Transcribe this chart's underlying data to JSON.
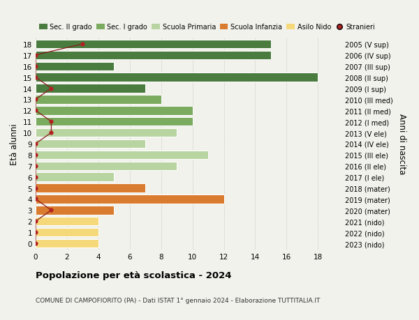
{
  "ages": [
    18,
    17,
    16,
    15,
    14,
    13,
    12,
    11,
    10,
    9,
    8,
    7,
    6,
    5,
    4,
    3,
    2,
    1,
    0
  ],
  "right_labels": [
    "2005 (V sup)",
    "2006 (IV sup)",
    "2007 (III sup)",
    "2008 (II sup)",
    "2009 (I sup)",
    "2010 (III med)",
    "2011 (II med)",
    "2012 (I med)",
    "2013 (V ele)",
    "2014 (IV ele)",
    "2015 (III ele)",
    "2016 (II ele)",
    "2017 (I ele)",
    "2018 (mater)",
    "2019 (mater)",
    "2020 (mater)",
    "2021 (nido)",
    "2022 (nido)",
    "2023 (nido)"
  ],
  "bar_values": [
    15,
    15,
    5,
    18,
    7,
    8,
    10,
    10,
    9,
    7,
    11,
    9,
    5,
    7,
    12,
    5,
    4,
    4,
    4
  ],
  "bar_colors": [
    "#4a7c3f",
    "#4a7c3f",
    "#4a7c3f",
    "#4a7c3f",
    "#4a7c3f",
    "#7aab5e",
    "#7aab5e",
    "#7aab5e",
    "#b8d4a0",
    "#b8d4a0",
    "#b8d4a0",
    "#b8d4a0",
    "#b8d4a0",
    "#d97c30",
    "#d97c30",
    "#d97c30",
    "#f5d87a",
    "#f5d87a",
    "#f5d87a"
  ],
  "stranieri_values": [
    3,
    0,
    0,
    0,
    1,
    0,
    0,
    1,
    1,
    0,
    0,
    0,
    0,
    0,
    0,
    1,
    0,
    0,
    0
  ],
  "legend_labels": [
    "Sec. II grado",
    "Sec. I grado",
    "Scuola Primaria",
    "Scuola Infanzia",
    "Asilo Nido",
    "Stranieri"
  ],
  "legend_colors": [
    "#4a7c3f",
    "#7aab5e",
    "#b8d4a0",
    "#d97c30",
    "#f5d87a",
    "#b22222"
  ],
  "title": "Popolazione per età scolastica - 2024",
  "subtitle": "COMUNE DI CAMPOFIORITO (PA) - Dati ISTAT 1° gennaio 2024 - Elaborazione TUTTITALIA.IT",
  "ylabel_left": "Età alunni",
  "ylabel_right": "Anni di nascita",
  "xticks": [
    0,
    2,
    4,
    6,
    8,
    10,
    12,
    14,
    16,
    18
  ],
  "xlim": [
    0,
    19.5
  ],
  "background_color": "#f2f2ec",
  "grid_color": "#cccccc"
}
